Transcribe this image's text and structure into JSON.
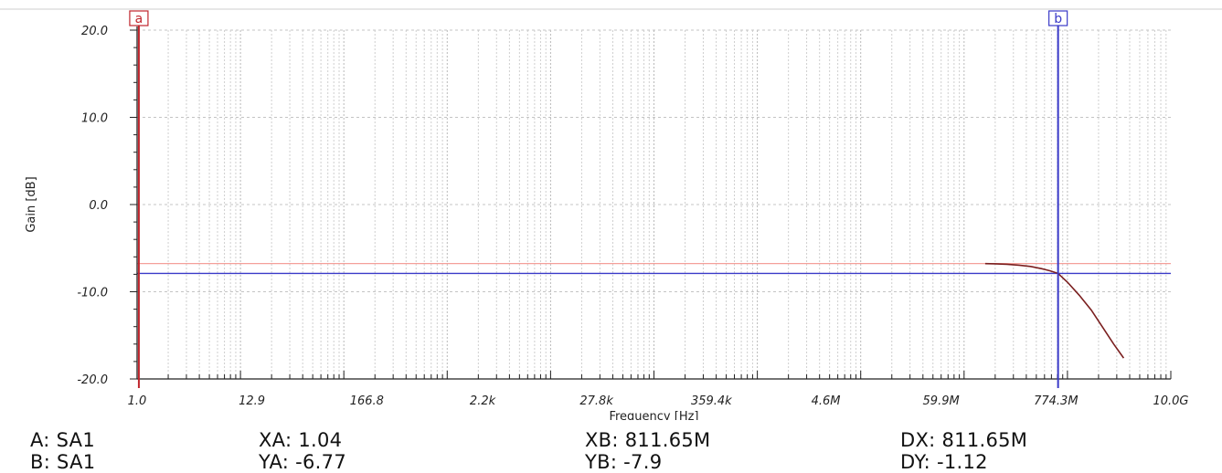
{
  "chart_data": {
    "type": "line",
    "xscale": "log",
    "xlabel": "Frequency [Hz]",
    "ylabel": "Gain [dB]",
    "xlim": [
      1.0,
      10000000000
    ],
    "ylim": [
      -20,
      20
    ],
    "grid": true,
    "x_ticks": [
      {
        "value": 1.0,
        "label": "1.0"
      },
      {
        "value": 12.9,
        "label": "12.9"
      },
      {
        "value": 166.8,
        "label": "166.8"
      },
      {
        "value": 2200,
        "label": "2.2k"
      },
      {
        "value": 27800,
        "label": "27.8k"
      },
      {
        "value": 359400,
        "label": "359.4k"
      },
      {
        "value": 4600000,
        "label": "4.6M"
      },
      {
        "value": 59900000,
        "label": "59.9M"
      },
      {
        "value": 774300000,
        "label": "774.3M"
      },
      {
        "value": 10000000000,
        "label": "10.0G"
      }
    ],
    "y_ticks": [
      {
        "value": 20,
        "label": "20.0"
      },
      {
        "value": 10,
        "label": "10.0"
      },
      {
        "value": 0,
        "label": "0.0"
      },
      {
        "value": -10,
        "label": "-10.0"
      },
      {
        "value": -20,
        "label": "-20.0"
      }
    ],
    "series": [
      {
        "color": "#7a1f1f",
        "x": [
          160000000,
          200000000,
          260000000,
          340000000,
          440000000,
          560000000,
          680000000,
          811650000,
          1000000000,
          1300000000,
          1700000000,
          2200000000,
          2800000000,
          3500000000
        ],
        "y": [
          -6.77,
          -6.8,
          -6.85,
          -6.95,
          -7.1,
          -7.35,
          -7.6,
          -7.9,
          -8.9,
          -10.4,
          -12.1,
          -14.1,
          -16.0,
          -17.6
        ]
      }
    ],
    "reference_line": {
      "y": -6.77,
      "color": "#f4a09a"
    },
    "cursors": [
      {
        "id": "a",
        "label": "a",
        "x": 1.04,
        "y": -6.77,
        "color": "#c0262d"
      },
      {
        "id": "b",
        "label": "b",
        "x": 811650000,
        "y": -7.9,
        "color": "#3a3ac8"
      }
    ]
  },
  "readouts": {
    "a_name": "A: SA1",
    "b_name": "B: SA1",
    "xa": "XA: 1.04",
    "ya": "YA: -6.77",
    "xb": "XB: 811.65M",
    "yb": "YB: -7.9",
    "dx": "DX: 811.65M",
    "dy": "DY: -1.12"
  }
}
